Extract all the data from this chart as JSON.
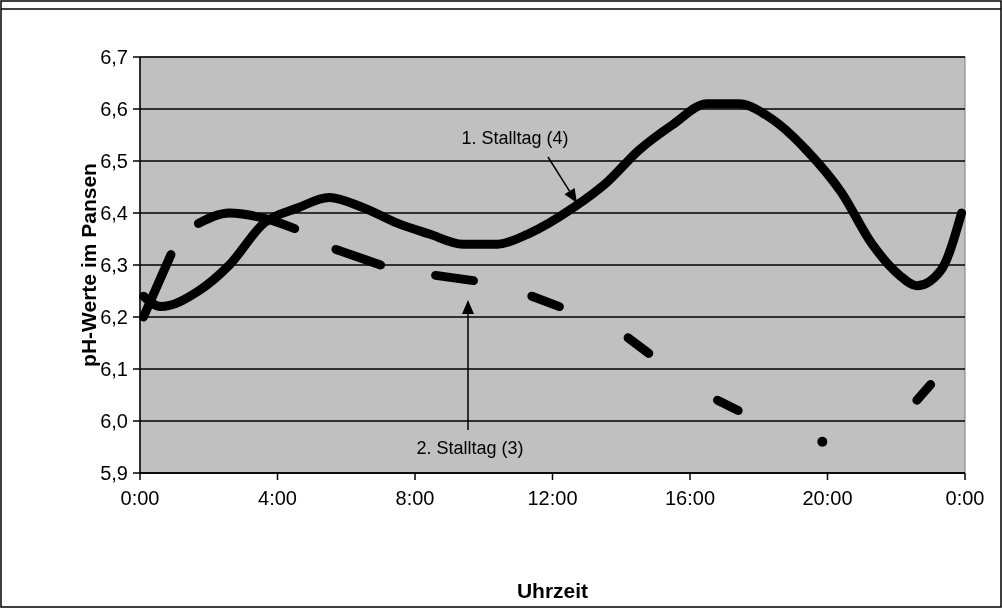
{
  "chart_data": {
    "type": "line",
    "xlabel": "Uhrzeit",
    "ylabel": "pH-Werte im Pansen",
    "xlim": [
      0,
      24
    ],
    "xticks": [
      {
        "value": 0,
        "label": "0:00"
      },
      {
        "value": 4,
        "label": "4:00"
      },
      {
        "value": 8,
        "label": "8:00"
      },
      {
        "value": 12,
        "label": "12:00"
      },
      {
        "value": 16,
        "label": "16:00"
      },
      {
        "value": 20,
        "label": "20:00"
      },
      {
        "value": 24,
        "label": "0:00"
      }
    ],
    "ylim": [
      5.9,
      6.7
    ],
    "yticks": [
      {
        "value": 5.9,
        "label": "5,9"
      },
      {
        "value": 6.0,
        "label": "6,0"
      },
      {
        "value": 6.1,
        "label": "6,1"
      },
      {
        "value": 6.2,
        "label": "6,2"
      },
      {
        "value": 6.3,
        "label": "6,3"
      },
      {
        "value": 6.4,
        "label": "6,4"
      },
      {
        "value": 6.5,
        "label": "6,5"
      },
      {
        "value": 6.6,
        "label": "6,6"
      },
      {
        "value": 6.7,
        "label": "6,7"
      }
    ],
    "grid": "y",
    "marker": "none",
    "line_style": "solid",
    "series": [
      {
        "color": "#000000",
        "x": [
          0.1,
          0.6,
          1.7,
          2.6,
          3.6,
          4.6,
          5.5,
          6.5,
          7.5,
          8.4,
          9.4,
          10.4,
          11.3,
          12.6,
          13.6,
          14.5,
          15.5,
          16.5,
          17.4,
          18.4,
          19.4,
          20.4,
          21.3,
          22.1,
          22.6,
          23.3,
          23.9
        ],
        "values": [
          6.24,
          6.22,
          6.25,
          6.3,
          6.38,
          6.41,
          6.43,
          6.41,
          6.38,
          6.36,
          6.34,
          6.34,
          6.36,
          6.41,
          6.46,
          6.52,
          6.57,
          6.61,
          6.61,
          6.58,
          6.52,
          6.44,
          6.34,
          6.28,
          6.26,
          6.29,
          6.4
        ]
      },
      {
        "color": "#000000",
        "x": [
          0.1,
          0.9,
          1.3,
          1.7,
          2.6,
          3.6,
          4.5,
          5.1,
          5.7,
          7.0,
          7.8,
          8.6,
          9.7,
          10.5,
          11.4,
          12.2,
          13.2,
          14.2,
          14.8,
          15.8,
          16.8,
          17.4,
          18.6,
          21.3,
          22.6,
          23.0
        ],
        "values": [
          6.2,
          6.32,
          null,
          6.38,
          6.4,
          6.39,
          6.37,
          null,
          6.33,
          6.3,
          null,
          6.28,
          6.27,
          null,
          6.24,
          6.22,
          null,
          6.16,
          6.13,
          null,
          6.04,
          6.02,
          null,
          null,
          6.04,
          6.07
        ]
      },
      {
        "type": "scatter",
        "marker": "circle",
        "color": "#000000",
        "x": [
          19.85
        ],
        "values": [
          5.96
        ]
      }
    ],
    "annotations": [
      "1. Stalltag (4)",
      "2. Stalltag (3)"
    ]
  }
}
